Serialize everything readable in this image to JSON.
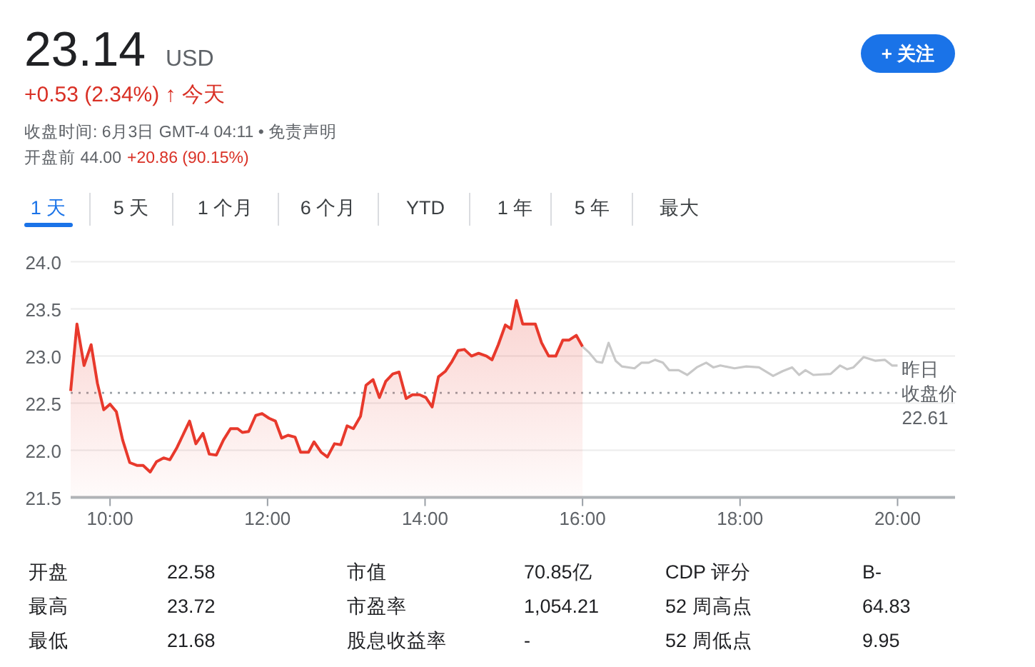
{
  "chart_data": {
    "type": "line",
    "annotations": [
      "23.14",
      "USD",
      "+0.53 (2.34%) ↑ 今天",
      "收盘时间: 6月3日 GMT-4 04:11 • 免责声明",
      "开盘前 44.00",
      "+20.86 (90.15%)",
      "+ 关注",
      "1 天",
      "5 天",
      "1 个月",
      "6 个月",
      "YTD",
      "1 年",
      "5 年",
      "最大",
      "开盘",
      "22.58",
      "市值",
      "70.85亿",
      "CDP 评分",
      "B-",
      "最高",
      "23.72",
      "市盈率",
      "1,054.21",
      "52 周高点",
      "64.83",
      "最低",
      "21.68",
      "股息收益率",
      "-",
      "52 周低点",
      "9.95"
    ],
    "xlim": [
      9.5,
      20.73
    ],
    "xticks": [
      {
        "value": 10,
        "label": "10:00"
      },
      {
        "value": 12,
        "label": "12:00"
      },
      {
        "value": 14,
        "label": "14:00"
      },
      {
        "value": 16,
        "label": "16:00"
      },
      {
        "value": 18,
        "label": "18:00"
      },
      {
        "value": 20,
        "label": "20:00"
      }
    ],
    "ylim": [
      21.5,
      24.0
    ],
    "yticks": [
      {
        "value": 21.5,
        "label": "21.5"
      },
      {
        "value": 22.0,
        "label": "22.0"
      },
      {
        "value": 22.5,
        "label": "22.5"
      },
      {
        "value": 23.0,
        "label": "23.0"
      },
      {
        "value": 23.5,
        "label": "23.5"
      },
      {
        "value": 24.0,
        "label": "24.0"
      }
    ],
    "grid": "y",
    "marker": "none",
    "line_style": "solid",
    "ref_lines": [
      {
        "axis": "y",
        "value": 22.61,
        "label": "昨日收盘价\n22.61",
        "color": "#9aa0a6",
        "line_style": "dotted"
      }
    ],
    "series": [
      {
        "type": "area",
        "color": "#e8392c",
        "x": [
          9.5,
          9.58,
          9.67,
          9.76,
          9.84,
          9.92,
          10.0,
          10.08,
          10.16,
          10.25,
          10.34,
          10.42,
          10.51,
          10.59,
          10.68,
          10.76,
          10.85,
          11.01,
          11.09,
          11.18,
          11.26,
          11.35,
          11.44,
          11.53,
          11.62,
          11.68,
          11.76,
          11.85,
          11.93,
          12.02,
          12.1,
          12.18,
          12.26,
          12.35,
          12.42,
          12.52,
          12.59,
          12.68,
          12.76,
          12.85,
          12.93,
          13.01,
          13.09,
          13.18,
          13.25,
          13.34,
          13.42,
          13.5,
          13.59,
          13.67,
          13.76,
          13.84,
          13.93,
          14.01,
          14.09,
          14.17,
          14.26,
          14.34,
          14.42,
          14.5,
          14.59,
          14.68,
          14.78,
          14.85,
          14.93,
          15.02,
          15.09,
          15.16,
          15.24,
          15.4,
          15.48,
          15.57,
          15.66,
          15.75,
          15.83,
          15.92,
          16.0
        ],
        "values": [
          22.63,
          23.34,
          22.9,
          23.12,
          22.71,
          22.43,
          22.49,
          22.41,
          22.11,
          21.87,
          21.84,
          21.84,
          21.77,
          21.88,
          21.92,
          21.9,
          22.03,
          22.31,
          22.07,
          22.18,
          21.96,
          21.95,
          22.11,
          22.23,
          22.23,
          22.19,
          22.2,
          22.37,
          22.39,
          22.34,
          22.31,
          22.13,
          22.16,
          22.14,
          21.98,
          21.98,
          22.09,
          21.98,
          21.93,
          22.07,
          22.06,
          22.26,
          22.23,
          22.36,
          22.69,
          22.75,
          22.56,
          22.73,
          22.81,
          22.83,
          22.55,
          22.59,
          22.59,
          22.56,
          22.46,
          22.78,
          22.84,
          22.94,
          23.06,
          23.07,
          23.0,
          23.03,
          23.0,
          22.96,
          23.12,
          23.33,
          23.29,
          23.59,
          23.34,
          23.34,
          23.14,
          23.0,
          23.0,
          23.17,
          23.17,
          23.22,
          23.1
        ]
      },
      {
        "type": "line",
        "color": "#c8c8c8",
        "x": [
          16.0,
          16.08,
          16.18,
          16.25,
          16.33,
          16.42,
          16.5,
          16.66,
          16.75,
          16.84,
          16.92,
          17.02,
          17.1,
          17.22,
          17.33,
          17.45,
          17.57,
          17.66,
          17.75,
          17.93,
          18.08,
          18.24,
          18.42,
          18.54,
          18.66,
          18.75,
          18.83,
          18.93,
          19.15,
          19.27,
          19.36,
          19.44,
          19.57,
          19.72,
          19.84,
          19.93,
          20.0
        ],
        "values": [
          23.1,
          23.04,
          22.94,
          22.93,
          23.14,
          22.95,
          22.89,
          22.87,
          22.93,
          22.93,
          22.96,
          22.93,
          22.85,
          22.85,
          22.8,
          22.88,
          22.93,
          22.88,
          22.9,
          22.87,
          22.89,
          22.88,
          22.79,
          22.84,
          22.88,
          22.8,
          22.85,
          22.8,
          22.81,
          22.9,
          22.86,
          22.88,
          22.99,
          22.95,
          22.96,
          22.9,
          22.9
        ]
      }
    ]
  }
}
